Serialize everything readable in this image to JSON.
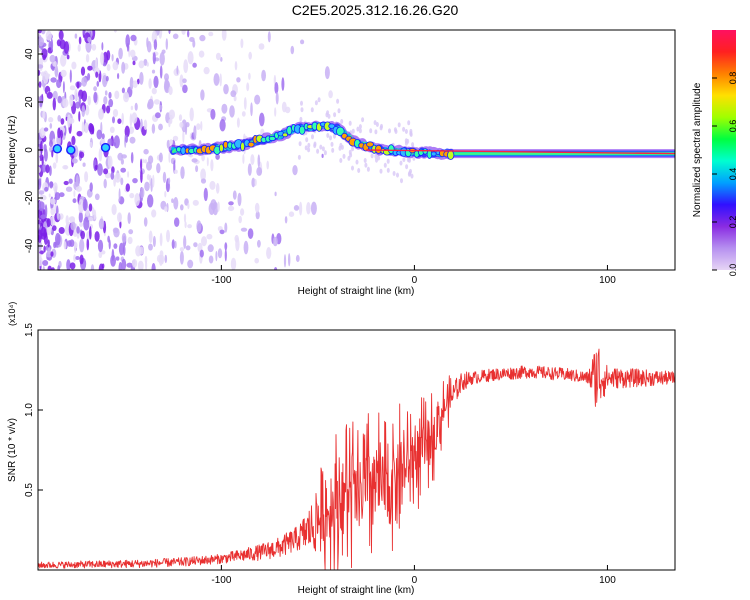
{
  "title": "C2E5.2025.312.16.26.G20",
  "chart_data": [
    {
      "type": "heatmap",
      "title": "C2E5.2025.312.16.26.G20",
      "xlabel": "Height of straight line (km)",
      "ylabel": "Frequency (Hz)",
      "xlim": [
        -195,
        135
      ],
      "ylim": [
        -50,
        50
      ],
      "xticks": [
        {
          "v": -100,
          "label": "-100"
        },
        {
          "v": 0,
          "label": "0"
        },
        {
          "v": 100,
          "label": "100"
        }
      ],
      "yticks": [
        {
          "v": -40,
          "label": "-40"
        },
        {
          "v": -20,
          "label": "-20"
        },
        {
          "v": 0,
          "label": "0"
        },
        {
          "v": 20,
          "label": "20"
        },
        {
          "v": 40,
          "label": "40"
        }
      ],
      "ridge": {
        "x": [
          -125,
          -110,
          -100,
          -90,
          -80,
          -70,
          -60,
          -50,
          -45,
          -40,
          -35,
          -30,
          -25,
          -20,
          -15,
          -10,
          0,
          20,
          40,
          60,
          80,
          100,
          120,
          135
        ],
        "freq": [
          0,
          0,
          1,
          2,
          4,
          6,
          9,
          10,
          10,
          9,
          6,
          3,
          2,
          0.5,
          0,
          -0.5,
          -1,
          -1.5,
          -1.5,
          -1.5,
          -1.5,
          -1.5,
          -1.5,
          -1.5
        ]
      },
      "colorbar": {
        "label": "Normalized spectral amplitude",
        "range": [
          0,
          1
        ],
        "ticks": [
          {
            "v": 0.0,
            "label": "0.0"
          },
          {
            "v": 0.2,
            "label": "0.2"
          },
          {
            "v": 0.4,
            "label": "0.4"
          },
          {
            "v": 0.6,
            "label": "0.6"
          },
          {
            "v": 0.8,
            "label": "0.8"
          }
        ],
        "colors": [
          "#e6d5f5",
          "#b690f0",
          "#8a2be2",
          "#3010ff",
          "#00a0ff",
          "#00ffd0",
          "#00ff40",
          "#a0ff00",
          "#ffe000",
          "#ff8000",
          "#ff2020",
          "#ff1060"
        ]
      }
    },
    {
      "type": "line",
      "xlabel": "Height of straight line (km)",
      "ylabel": "SNR (10 * v/v)",
      "exponent_label": "(x10⁴)",
      "xlim": [
        -195,
        135
      ],
      "ylim": [
        0,
        1.5
      ],
      "xticks": [
        {
          "v": -100,
          "label": "-100"
        },
        {
          "v": 0,
          "label": "0"
        },
        {
          "v": 100,
          "label": "100"
        }
      ],
      "yticks": [
        {
          "v": 0.5,
          "label": "0.5"
        },
        {
          "v": 1.0,
          "label": "1.0"
        },
        {
          "v": 1.5,
          "label": "1.5"
        }
      ],
      "color": "#e83030",
      "envelope": {
        "x": [
          -195,
          -140,
          -120,
          -100,
          -90,
          -80,
          -70,
          -60,
          -50,
          -45,
          -40,
          -35,
          -30,
          -25,
          -20,
          -15,
          -10,
          -5,
          0,
          5,
          10,
          15,
          20,
          25,
          30,
          40,
          60,
          80,
          90,
          95,
          100,
          110,
          120,
          135
        ],
        "y": [
          0.03,
          0.04,
          0.05,
          0.07,
          0.09,
          0.11,
          0.14,
          0.2,
          0.3,
          0.35,
          0.42,
          0.5,
          0.45,
          0.5,
          0.55,
          0.5,
          0.6,
          0.65,
          0.7,
          0.75,
          0.85,
          1.0,
          1.1,
          1.18,
          1.2,
          1.22,
          1.24,
          1.22,
          1.2,
          1.22,
          1.2,
          1.2,
          1.2,
          1.2
        ]
      },
      "noise_amplitude": {
        "x": [
          -195,
          -100,
          -80,
          -60,
          -50,
          -40,
          -30,
          -20,
          -10,
          0,
          10,
          20,
          30,
          60,
          90,
          95,
          100,
          135
        ],
        "y": [
          0.02,
          0.03,
          0.05,
          0.08,
          0.2,
          0.35,
          0.35,
          0.35,
          0.3,
          0.25,
          0.2,
          0.08,
          0.04,
          0.04,
          0.04,
          0.25,
          0.07,
          0.04
        ]
      }
    }
  ]
}
